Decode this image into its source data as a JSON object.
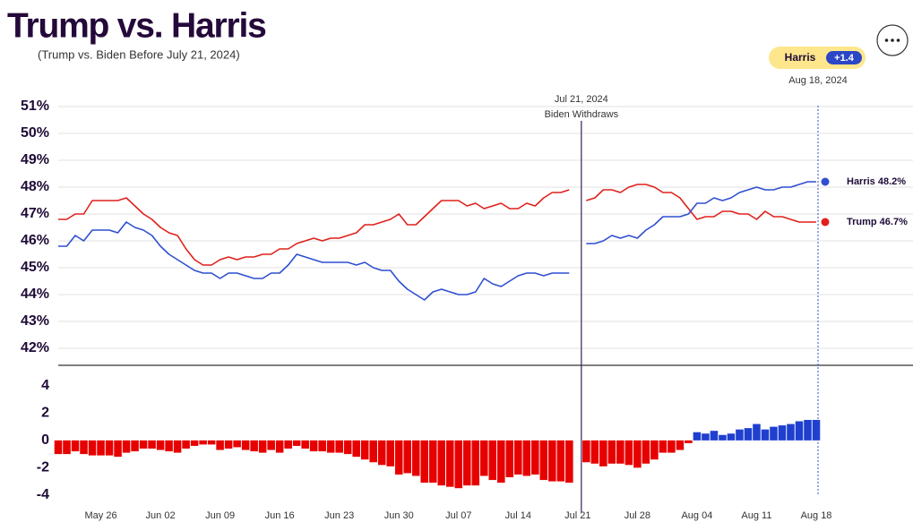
{
  "chart_data": {
    "type": "line",
    "title": "Trump vs. Harris",
    "subtitle": "(Trump vs. Biden Before July 21, 2024)",
    "annotation": {
      "date": "Jul 21, 2024",
      "text": "Biden Withdraws"
    },
    "as_of": "Aug 18, 2024",
    "lead": {
      "value": 1.4,
      "label": "+1.4"
    },
    "categories": [
      "May 21",
      "May 22",
      "May 23",
      "May 24",
      "May 25",
      "May 26",
      "May 27",
      "May 28",
      "May 29",
      "May 30",
      "May 31",
      "Jun 01",
      "Jun 02",
      "Jun 03",
      "Jun 04",
      "Jun 05",
      "Jun 06",
      "Jun 07",
      "Jun 08",
      "Jun 09",
      "Jun 10",
      "Jun 11",
      "Jun 12",
      "Jun 13",
      "Jun 14",
      "Jun 15",
      "Jun 16",
      "Jun 17",
      "Jun 18",
      "Jun 19",
      "Jun 20",
      "Jun 21",
      "Jun 22",
      "Jun 23",
      "Jun 24",
      "Jun 25",
      "Jun 26",
      "Jun 27",
      "Jun 28",
      "Jun 29",
      "Jun 30",
      "Jul 01",
      "Jul 02",
      "Jul 03",
      "Jul 04",
      "Jul 05",
      "Jul 06",
      "Jul 07",
      "Jul 08",
      "Jul 09",
      "Jul 10",
      "Jul 11",
      "Jul 12",
      "Jul 13",
      "Jul 14",
      "Jul 15",
      "Jul 16",
      "Jul 17",
      "Jul 18",
      "Jul 19",
      "Jul 20",
      "Jul 21",
      "Jul 22",
      "Jul 23",
      "Jul 24",
      "Jul 25",
      "Jul 26",
      "Jul 27",
      "Jul 28",
      "Jul 29",
      "Jul 30",
      "Jul 31",
      "Aug 01",
      "Aug 02",
      "Aug 03",
      "Aug 04",
      "Aug 05",
      "Aug 06",
      "Aug 07",
      "Aug 08",
      "Aug 09",
      "Aug 10",
      "Aug 11",
      "Aug 12",
      "Aug 13",
      "Aug 14",
      "Aug 15",
      "Aug 16",
      "Aug 17",
      "Aug 18"
    ],
    "xticks": [
      "May 26",
      "Jun 02",
      "Jun 09",
      "Jun 16",
      "Jun 23",
      "Jun 30",
      "Jul 07",
      "Jul 14",
      "Jul 21",
      "Jul 28",
      "Aug 04",
      "Aug 11",
      "Aug 18"
    ],
    "ylim": [
      41.4,
      51.4
    ],
    "yticks": [
      {
        "value": 51,
        "label": "51%"
      },
      {
        "value": 50,
        "label": "50%"
      },
      {
        "value": 49,
        "label": "49%"
      },
      {
        "value": 48,
        "label": "48%"
      },
      {
        "value": 47,
        "label": "47%"
      },
      {
        "value": 46,
        "label": "46%"
      },
      {
        "value": 45,
        "label": "45%"
      },
      {
        "value": 44,
        "label": "44%"
      },
      {
        "value": 43,
        "label": "43%"
      },
      {
        "value": 42,
        "label": "42%"
      }
    ],
    "grid": true,
    "series": [
      {
        "name": "Trump",
        "color": "#e0201b",
        "label": "Trump 46.7%",
        "values": [
          46.8,
          46.8,
          47.0,
          47.0,
          47.5,
          47.5,
          47.5,
          47.5,
          47.6,
          47.3,
          47.0,
          46.8,
          46.5,
          46.3,
          46.2,
          45.7,
          45.3,
          45.1,
          45.1,
          45.3,
          45.4,
          45.3,
          45.4,
          45.4,
          45.5,
          45.5,
          45.7,
          45.7,
          45.9,
          46.0,
          46.1,
          46.0,
          46.1,
          46.1,
          46.2,
          46.3,
          46.6,
          46.6,
          46.7,
          46.8,
          47.0,
          46.6,
          46.6,
          46.9,
          47.2,
          47.5,
          47.5,
          47.5,
          47.3,
          47.4,
          47.2,
          47.3,
          47.4,
          47.2,
          47.2,
          47.4,
          47.3,
          47.6,
          47.8,
          47.8,
          47.9,
          null,
          47.5,
          47.6,
          47.9,
          47.9,
          47.8,
          48.0,
          48.1,
          48.1,
          48.0,
          47.8,
          47.8,
          47.6,
          47.2,
          46.8,
          46.9,
          46.9,
          47.1,
          47.1,
          47.0,
          47.0,
          46.8,
          47.1,
          46.9,
          46.9,
          46.8,
          46.7,
          46.7,
          46.7
        ]
      },
      {
        "name": "Harris",
        "color": "#2f4fd0",
        "label": "Harris 48.2%",
        "values": [
          45.8,
          45.8,
          46.2,
          46.0,
          46.4,
          46.4,
          46.4,
          46.3,
          46.7,
          46.5,
          46.4,
          46.2,
          45.8,
          45.5,
          45.3,
          45.1,
          44.9,
          44.8,
          44.8,
          44.6,
          44.8,
          44.8,
          44.7,
          44.6,
          44.6,
          44.8,
          44.8,
          45.1,
          45.5,
          45.4,
          45.3,
          45.2,
          45.2,
          45.2,
          45.2,
          45.1,
          45.2,
          45.0,
          44.9,
          44.9,
          44.5,
          44.2,
          44.0,
          43.8,
          44.1,
          44.2,
          44.1,
          44.0,
          44.0,
          44.1,
          44.6,
          44.4,
          44.3,
          44.5,
          44.7,
          44.8,
          44.8,
          44.7,
          44.8,
          44.8,
          44.8,
          null,
          45.9,
          45.9,
          46.0,
          46.2,
          46.1,
          46.2,
          46.1,
          46.4,
          46.6,
          46.9,
          46.9,
          46.9,
          47.0,
          47.4,
          47.4,
          47.6,
          47.5,
          47.6,
          47.8,
          47.9,
          48.0,
          47.9,
          47.9,
          48.0,
          48.0,
          48.1,
          48.2,
          48.2
        ]
      }
    ],
    "margin": {
      "type": "bar",
      "ylim": [
        -4.6,
        5.5
      ],
      "yticks": [
        4,
        2,
        0,
        -2,
        -4
      ],
      "color_positive": "#1f3fcf",
      "color_negative": "#e60000",
      "values": [
        -1.0,
        -1.0,
        -0.8,
        -1.0,
        -1.1,
        -1.1,
        -1.1,
        -1.2,
        -0.9,
        -0.8,
        -0.6,
        -0.6,
        -0.7,
        -0.8,
        -0.9,
        -0.6,
        -0.4,
        -0.3,
        -0.3,
        -0.7,
        -0.6,
        -0.5,
        -0.7,
        -0.8,
        -0.9,
        -0.7,
        -0.9,
        -0.6,
        -0.4,
        -0.6,
        -0.8,
        -0.8,
        -0.9,
        -0.9,
        -1.0,
        -1.2,
        -1.4,
        -1.6,
        -1.8,
        -1.9,
        -2.5,
        -2.4,
        -2.6,
        -3.1,
        -3.1,
        -3.3,
        -3.4,
        -3.5,
        -3.3,
        -3.3,
        -2.6,
        -2.9,
        -3.1,
        -2.7,
        -2.5,
        -2.6,
        -2.5,
        -2.9,
        -3.0,
        -3.0,
        -3.1,
        null,
        -1.6,
        -1.7,
        -1.9,
        -1.7,
        -1.7,
        -1.8,
        -2.0,
        -1.7,
        -1.4,
        -0.9,
        -0.9,
        -0.7,
        -0.2,
        0.6,
        0.5,
        0.7,
        0.4,
        0.5,
        0.8,
        0.9,
        1.2,
        0.8,
        1.0,
        1.1,
        1.2,
        1.4,
        1.5,
        1.5
      ]
    }
  }
}
